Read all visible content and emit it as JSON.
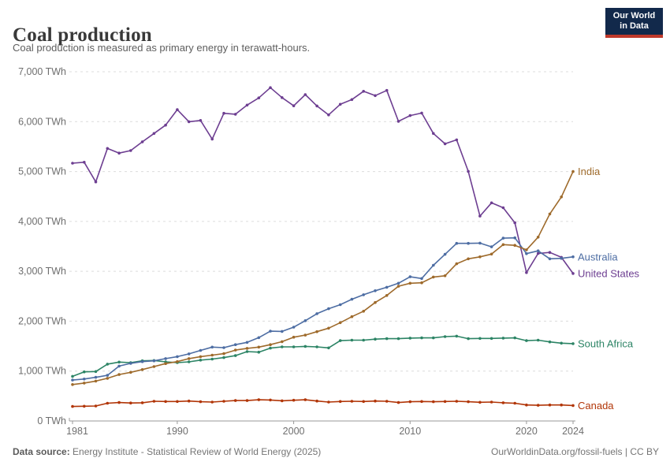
{
  "header": {
    "title": "Coal production",
    "subtitle": "Coal production is measured as primary energy in terawatt-hours."
  },
  "logo": {
    "line1": "Our World",
    "line2": "in Data",
    "bg_color": "#12294b",
    "accent_color": "#c0392b"
  },
  "footer": {
    "source_label": "Data source:",
    "source_text": " Energy Institute - Statistical Review of World Energy (2025)",
    "right_text": "OurWorldinData.org/fossil-fuels | CC BY"
  },
  "chart_data": {
    "type": "line",
    "title": "Coal production",
    "xlabel": "",
    "ylabel": "",
    "unit": "TWh",
    "x_start_year": 1981,
    "x_end_year": 2024,
    "ylim": [
      0,
      7000
    ],
    "grid": "horizontal-dashed",
    "legend_position": "right-end-labels",
    "x_ticks": [
      {
        "value": 1981,
        "label": "1981"
      },
      {
        "value": 1990,
        "label": "1990"
      },
      {
        "value": 2000,
        "label": "2000"
      },
      {
        "value": 2010,
        "label": "2010"
      },
      {
        "value": 2020,
        "label": "2020"
      },
      {
        "value": 2024,
        "label": "2024"
      }
    ],
    "y_ticks": [
      {
        "value": 0,
        "label": "0 TWh"
      },
      {
        "value": 1000,
        "label": "1,000 TWh"
      },
      {
        "value": 2000,
        "label": "2,000 TWh"
      },
      {
        "value": 3000,
        "label": "3,000 TWh"
      },
      {
        "value": 4000,
        "label": "4,000 TWh"
      },
      {
        "value": 5000,
        "label": "5,000 TWh"
      },
      {
        "value": 6000,
        "label": "6,000 TWh"
      },
      {
        "value": 7000,
        "label": "7,000 TWh"
      }
    ],
    "series": [
      {
        "name": "India",
        "color": "#9e6a2b",
        "values": [
          730,
          760,
          800,
          855,
          930,
          975,
          1030,
          1090,
          1150,
          1190,
          1250,
          1290,
          1320,
          1350,
          1420,
          1455,
          1480,
          1530,
          1590,
          1680,
          1720,
          1790,
          1860,
          1970,
          2090,
          2200,
          2375,
          2515,
          2700,
          2760,
          2770,
          2885,
          2910,
          3150,
          3250,
          3290,
          3345,
          3535,
          3520,
          3430,
          3685,
          4150,
          4490,
          5000
        ]
      },
      {
        "name": "Australia",
        "color": "#4d6da3",
        "values": [
          820,
          840,
          875,
          915,
          1100,
          1155,
          1190,
          1205,
          1250,
          1290,
          1345,
          1415,
          1480,
          1470,
          1530,
          1575,
          1670,
          1800,
          1795,
          1880,
          2010,
          2150,
          2250,
          2330,
          2440,
          2530,
          2610,
          2680,
          2760,
          2890,
          2855,
          3120,
          3340,
          3560,
          3560,
          3565,
          3490,
          3665,
          3670,
          3355,
          3410,
          3250,
          3260,
          3290
        ]
      },
      {
        "name": "United States",
        "color": "#6d3e91",
        "values": [
          5167,
          5186,
          4792,
          5462,
          5370,
          5420,
          5595,
          5762,
          5931,
          6240,
          5998,
          6023,
          5650,
          6167,
          6148,
          6331,
          6475,
          6681,
          6481,
          6317,
          6542,
          6314,
          6136,
          6347,
          6442,
          6608,
          6522,
          6625,
          6006,
          6122,
          6172,
          5762,
          5556,
          5634,
          5003,
          4106,
          4372,
          4275,
          3972,
          2975,
          3358,
          3378,
          3281,
          2956
        ]
      },
      {
        "name": "South Africa",
        "color": "#2c8465",
        "values": [
          895,
          985,
          990,
          1140,
          1180,
          1170,
          1205,
          1212,
          1185,
          1170,
          1185,
          1220,
          1240,
          1270,
          1310,
          1390,
          1380,
          1460,
          1485,
          1485,
          1495,
          1485,
          1465,
          1610,
          1620,
          1620,
          1640,
          1650,
          1650,
          1660,
          1665,
          1665,
          1690,
          1700,
          1650,
          1655,
          1655,
          1660,
          1665,
          1610,
          1620,
          1585,
          1560,
          1550
        ]
      },
      {
        "name": "Canada",
        "color": "#b13507",
        "values": [
          290,
          295,
          300,
          355,
          370,
          360,
          365,
          395,
          390,
          390,
          400,
          385,
          380,
          395,
          410,
          410,
          425,
          420,
          405,
          415,
          425,
          400,
          380,
          390,
          395,
          390,
          400,
          395,
          370,
          385,
          390,
          385,
          390,
          395,
          385,
          375,
          380,
          365,
          355,
          320,
          315,
          320,
          320,
          310
        ]
      }
    ]
  }
}
